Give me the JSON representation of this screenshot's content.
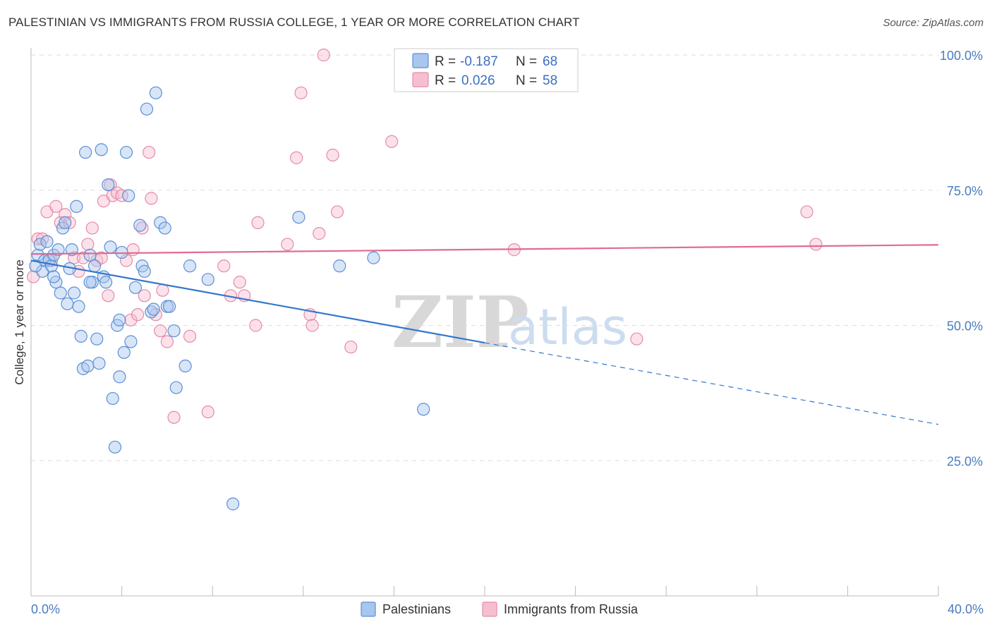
{
  "title": "PALESTINIAN VS IMMIGRANTS FROM RUSSIA COLLEGE, 1 YEAR OR MORE CORRELATION CHART",
  "source": "Source: ZipAtlas.com",
  "watermark": {
    "zip": "ZIP",
    "atlas": "atlas"
  },
  "colors": {
    "blue_fill": "#a8c6ee",
    "blue_stroke": "#5b8fd6",
    "blue_line": "#3377cc",
    "pink_fill": "#f6bfd0",
    "pink_stroke": "#e58aa8",
    "pink_line": "#e06b92",
    "grid": "#dddddd",
    "tick_text": "#4a7cc0"
  },
  "legend": {
    "rows": [
      {
        "r_label": "R =",
        "r_value": "-0.187",
        "n_label": "N =",
        "n_value": "68"
      },
      {
        "r_label": "R =",
        "r_value": "0.026",
        "n_label": "N =",
        "n_value": "58"
      }
    ]
  },
  "chart_data": {
    "type": "scatter",
    "title": "PALESTINIAN VS IMMIGRANTS FROM RUSSIA COLLEGE, 1 YEAR OR MORE CORRELATION CHART",
    "xlabel": "",
    "ylabel": "College, 1 year or more",
    "xlim": [
      0,
      40
    ],
    "ylim": [
      0,
      102
    ],
    "x_tick_labels": [
      "0.0%",
      "40.0%"
    ],
    "y_ticks": [
      25,
      50,
      75,
      100
    ],
    "y_tick_labels": [
      "25.0%",
      "50.0%",
      "75.0%",
      "100.0%"
    ],
    "grid": true,
    "legend_position": "top-center",
    "series": [
      {
        "name": "Palestinians",
        "r": -0.187,
        "n": 68,
        "trend": {
          "x0": 0,
          "y0": 62.0,
          "x1": 20,
          "y1": 46.8,
          "dash_x1": 40,
          "dash_y1": 31.7
        },
        "points": [
          [
            0.3,
            63
          ],
          [
            0.4,
            65
          ],
          [
            0.5,
            60
          ],
          [
            0.6,
            62
          ],
          [
            0.7,
            65.5
          ],
          [
            0.8,
            62
          ],
          [
            0.9,
            61
          ],
          [
            1.0,
            63
          ],
          [
            1.1,
            58
          ],
          [
            1.2,
            64
          ],
          [
            1.3,
            56
          ],
          [
            1.4,
            68
          ],
          [
            1.5,
            69
          ],
          [
            1.6,
            54
          ],
          [
            1.7,
            60.5
          ],
          [
            1.8,
            64
          ],
          [
            1.9,
            56
          ],
          [
            2.0,
            72
          ],
          [
            2.1,
            53.5
          ],
          [
            2.2,
            48
          ],
          [
            2.3,
            42
          ],
          [
            2.4,
            82
          ],
          [
            2.5,
            42.5
          ],
          [
            2.6,
            63
          ],
          [
            2.7,
            58
          ],
          [
            2.8,
            61
          ],
          [
            2.9,
            47.5
          ],
          [
            3.0,
            43
          ],
          [
            3.1,
            82.5
          ],
          [
            3.2,
            59
          ],
          [
            3.3,
            58
          ],
          [
            3.4,
            76
          ],
          [
            3.5,
            64.5
          ],
          [
            3.6,
            36.5
          ],
          [
            3.7,
            27.5
          ],
          [
            3.8,
            50
          ],
          [
            3.9,
            40.5
          ],
          [
            4.0,
            63.5
          ],
          [
            4.1,
            45
          ],
          [
            4.2,
            82
          ],
          [
            4.3,
            74
          ],
          [
            4.4,
            47
          ],
          [
            4.6,
            57
          ],
          [
            4.8,
            68.5
          ],
          [
            4.9,
            61
          ],
          [
            5.0,
            60
          ],
          [
            5.1,
            90
          ],
          [
            5.3,
            52.5
          ],
          [
            5.4,
            53
          ],
          [
            5.5,
            93
          ],
          [
            5.7,
            69
          ],
          [
            5.9,
            68
          ],
          [
            6.0,
            53.5
          ],
          [
            6.1,
            53.5
          ],
          [
            6.3,
            49
          ],
          [
            6.4,
            38.5
          ],
          [
            6.8,
            42.5
          ],
          [
            7.0,
            61
          ],
          [
            7.8,
            58.5
          ],
          [
            8.9,
            17
          ],
          [
            11.8,
            70
          ],
          [
            13.6,
            61
          ],
          [
            15.1,
            62.5
          ],
          [
            17.3,
            34.5
          ],
          [
            0.2,
            61
          ],
          [
            1.0,
            59
          ],
          [
            2.6,
            58
          ],
          [
            3.9,
            51
          ]
        ]
      },
      {
        "name": "Immigrants from Russia",
        "r": 0.026,
        "n": 58,
        "trend": {
          "x0": 0,
          "y0": 63.2,
          "x1": 40,
          "y1": 64.9
        },
        "points": [
          [
            0.1,
            59
          ],
          [
            0.3,
            66
          ],
          [
            0.5,
            66
          ],
          [
            0.7,
            71
          ],
          [
            0.9,
            62
          ],
          [
            1.1,
            72
          ],
          [
            1.3,
            69
          ],
          [
            1.5,
            70.5
          ],
          [
            1.7,
            69
          ],
          [
            1.9,
            62.5
          ],
          [
            2.1,
            60
          ],
          [
            2.3,
            62.5
          ],
          [
            2.5,
            65
          ],
          [
            2.7,
            68
          ],
          [
            2.9,
            62
          ],
          [
            3.1,
            62.5
          ],
          [
            3.2,
            73
          ],
          [
            3.4,
            55.5
          ],
          [
            3.5,
            76
          ],
          [
            3.6,
            74
          ],
          [
            3.8,
            74.5
          ],
          [
            4.0,
            74
          ],
          [
            4.2,
            62
          ],
          [
            4.4,
            51
          ],
          [
            4.5,
            64
          ],
          [
            4.7,
            52
          ],
          [
            4.9,
            68
          ],
          [
            5.0,
            55.5
          ],
          [
            5.2,
            82
          ],
          [
            5.3,
            73.5
          ],
          [
            5.5,
            52
          ],
          [
            5.7,
            49
          ],
          [
            5.8,
            56.5
          ],
          [
            6.0,
            47
          ],
          [
            6.3,
            33
          ],
          [
            7.0,
            48
          ],
          [
            7.8,
            34
          ],
          [
            8.5,
            61
          ],
          [
            8.8,
            55.5
          ],
          [
            9.2,
            58
          ],
          [
            9.4,
            55.5
          ],
          [
            9.9,
            50
          ],
          [
            10.0,
            69
          ],
          [
            11.3,
            65
          ],
          [
            11.7,
            81
          ],
          [
            11.9,
            93
          ],
          [
            12.3,
            52
          ],
          [
            12.4,
            50
          ],
          [
            12.7,
            67
          ],
          [
            13.3,
            81.5
          ],
          [
            13.5,
            71
          ],
          [
            14.1,
            46
          ],
          [
            15.9,
            84
          ],
          [
            12.9,
            100
          ],
          [
            21.3,
            64
          ],
          [
            26.7,
            47.5
          ],
          [
            34.2,
            71
          ],
          [
            34.6,
            65
          ]
        ]
      }
    ]
  }
}
